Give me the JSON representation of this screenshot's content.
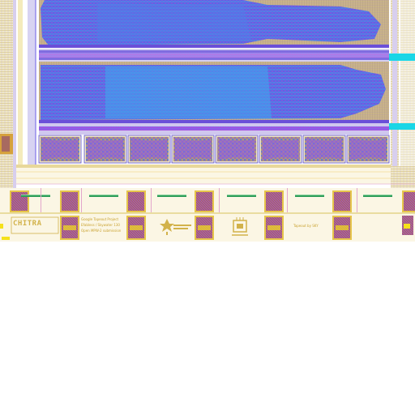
{
  "canvas": {
    "background": "#ffffff",
    "colors": {
      "metal_blue": "#3f7fe0",
      "metal_violet": "#9a52e6",
      "magenta": "#c545d8",
      "cyan": "#19d6e6",
      "yellow": "#f5e11a",
      "tan": "#c9b38a",
      "pad_brown": "#b07a55",
      "green": "#2f9e5a",
      "lavender": "#c8bff0"
    }
  },
  "logo": {
    "text": "CHITRA"
  },
  "silkscreen": {
    "block_lines": [
      "Google Tapeout Project",
      "Efabless / Skywater 130",
      "Open MPW-2 submission"
    ],
    "right_label": "Tapeout by SKY"
  },
  "icons": [
    "design-logo-icon",
    "chip-logo-icon"
  ]
}
